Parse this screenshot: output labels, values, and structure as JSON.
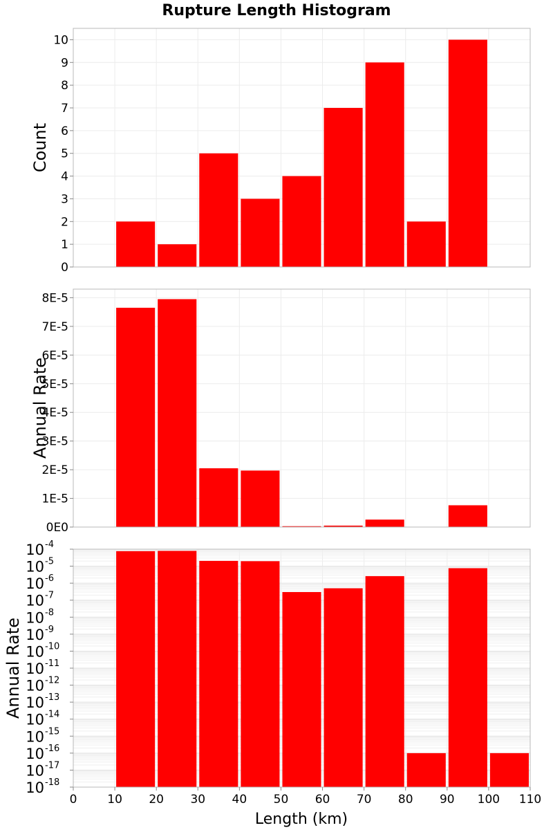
{
  "chart_data": {
    "title": "Rupture Length Histogram",
    "type": "bar",
    "xlabel": "Length (km)",
    "x_ticks": [
      "0",
      "10",
      "20",
      "30",
      "40",
      "50",
      "60",
      "70",
      "80",
      "90",
      "100",
      "110"
    ],
    "xlim": [
      0,
      110
    ],
    "bin_width": 10,
    "bar_color": "#ff0000",
    "panels": [
      {
        "name": "count",
        "ylabel": "Count",
        "scale": "linear",
        "ylim": [
          0,
          10.5
        ],
        "y_ticks": [
          {
            "v": 0,
            "label": "0"
          },
          {
            "v": 1,
            "label": "1"
          },
          {
            "v": 2,
            "label": "2"
          },
          {
            "v": 3,
            "label": "3"
          },
          {
            "v": 4,
            "label": "4"
          },
          {
            "v": 5,
            "label": "5"
          },
          {
            "v": 6,
            "label": "6"
          },
          {
            "v": 7,
            "label": "7"
          },
          {
            "v": 8,
            "label": "8"
          },
          {
            "v": 9,
            "label": "9"
          },
          {
            "v": 10,
            "label": "10"
          }
        ],
        "bins": [
          10,
          20,
          30,
          40,
          50,
          60,
          70,
          80,
          90
        ],
        "values": [
          2,
          1,
          5,
          3,
          4,
          7,
          9,
          2,
          10
        ]
      },
      {
        "name": "rate-linear",
        "ylabel": "Annual Rate",
        "scale": "linear",
        "ylim": [
          0,
          8.3e-05
        ],
        "y_ticks": [
          {
            "v": 0,
            "label": "0E0"
          },
          {
            "v": 1e-05,
            "label": "1E-5"
          },
          {
            "v": 2e-05,
            "label": "2E-5"
          },
          {
            "v": 3e-05,
            "label": "3E-5"
          },
          {
            "v": 4e-05,
            "label": "4E-5"
          },
          {
            "v": 5e-05,
            "label": "5E-5"
          },
          {
            "v": 6e-05,
            "label": "6E-5"
          },
          {
            "v": 7e-05,
            "label": "7E-5"
          },
          {
            "v": 8e-05,
            "label": "8E-5"
          }
        ],
        "bins": [
          10,
          20,
          30,
          40,
          50,
          60,
          70,
          80,
          90
        ],
        "values": [
          7.65e-05,
          7.95e-05,
          2.05e-05,
          1.97e-05,
          3e-07,
          5e-07,
          2.6e-06,
          0,
          7.6e-06
        ]
      },
      {
        "name": "rate-log",
        "ylabel": "Annual Rate",
        "scale": "log",
        "ylim_exp": [
          -18,
          -4
        ],
        "y_ticks": [
          {
            "exp": -4,
            "label": "10",
            "sup": "-4"
          },
          {
            "exp": -5,
            "label": "10",
            "sup": "-5"
          },
          {
            "exp": -6,
            "label": "10",
            "sup": "-6"
          },
          {
            "exp": -7,
            "label": "10",
            "sup": "-7"
          },
          {
            "exp": -8,
            "label": "10",
            "sup": "-8"
          },
          {
            "exp": -9,
            "label": "10",
            "sup": "-9"
          },
          {
            "exp": -10,
            "label": "10",
            "sup": "-10"
          },
          {
            "exp": -11,
            "label": "10",
            "sup": "-11"
          },
          {
            "exp": -12,
            "label": "10",
            "sup": "-12"
          },
          {
            "exp": -13,
            "label": "10",
            "sup": "-13"
          },
          {
            "exp": -14,
            "label": "10",
            "sup": "-14"
          },
          {
            "exp": -15,
            "label": "10",
            "sup": "-15"
          },
          {
            "exp": -16,
            "label": "10",
            "sup": "-16"
          },
          {
            "exp": -17,
            "label": "10",
            "sup": "-17"
          },
          {
            "exp": -18,
            "label": "10",
            "sup": "-18"
          }
        ],
        "bins": [
          10,
          20,
          30,
          40,
          50,
          60,
          70,
          80,
          90,
          100
        ],
        "values": [
          7.65e-05,
          7.95e-05,
          2.05e-05,
          1.97e-05,
          3e-07,
          5e-07,
          2.6e-06,
          1e-16,
          7.6e-06,
          1e-16
        ]
      }
    ]
  }
}
